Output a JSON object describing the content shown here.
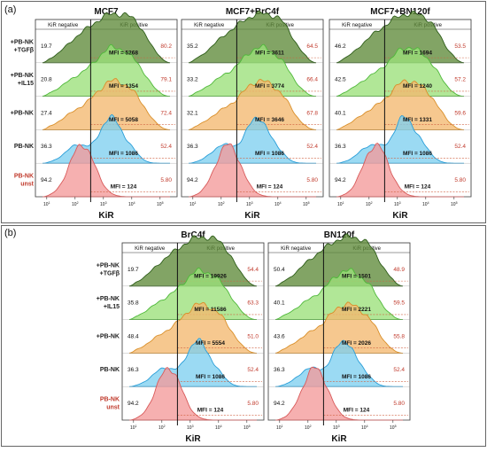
{
  "panel_labels": [
    "(a)",
    "(b)"
  ],
  "row_labels": [
    [
      "+PB-NK",
      "+TGFβ"
    ],
    [
      "+PB-NK",
      "+IL15"
    ],
    [
      "+PB-NK"
    ],
    [
      "PB-NK"
    ],
    [
      "PB-NK",
      "unst"
    ]
  ],
  "header": {
    "negative": "KiR negative",
    "positive": "KiR positive"
  },
  "axis": {
    "xlabel": "KiR",
    "tick_labels": [
      "10",
      "10",
      "10",
      "10",
      "10"
    ],
    "tick_exponents": [
      "1",
      "2",
      "3",
      "4",
      "5"
    ]
  },
  "colors": {
    "tgfb": "#5f8a3a",
    "tgfb_line": "#2e5d1a",
    "il15": "#9be07a",
    "il15_line": "#4fb83a",
    "pbnk_plus": "#f3b870",
    "pbnk_plus_line": "#d98f2a",
    "pbnk": "#7fd0f0",
    "pbnk_line": "#2a9ed8",
    "unst": "#f39a9a",
    "unst_line": "#d85a5a",
    "percent_text": "#c0392b",
    "unst_label": "#c0392b",
    "dash_line": "#d06040",
    "frame": "#666666"
  },
  "chart_data": [
    {
      "type": "histogram",
      "panel": "(a)",
      "title": "MCF7",
      "xlabel": "KiR",
      "rows": [
        {
          "condition": "+PB-NK +TGFβ",
          "negative_pct": "19.7",
          "positive_pct": "80.2",
          "mfi": "MFI = 5268"
        },
        {
          "condition": "+PB-NK +IL15",
          "negative_pct": "20.8",
          "positive_pct": "79.1",
          "mfi": "MFI = 1354"
        },
        {
          "condition": "+PB-NK",
          "negative_pct": "27.4",
          "positive_pct": "72.4",
          "mfi": "MFI = 5058"
        },
        {
          "condition": "PB-NK",
          "negative_pct": "36.3",
          "positive_pct": "52.4",
          "mfi": "MFI = 1086"
        },
        {
          "condition": "PB-NK unst",
          "negative_pct": "94.2",
          "positive_pct": "5.80",
          "mfi": "MFI = 124"
        }
      ]
    },
    {
      "type": "histogram",
      "panel": "(a)",
      "title": "MCF7+BrC4f",
      "xlabel": "KiR",
      "rows": [
        {
          "condition": "+PB-NK +TGFβ",
          "negative_pct": "35.2",
          "positive_pct": "64.5",
          "mfi": "MFI = 3611"
        },
        {
          "condition": "+PB-NK +IL15",
          "negative_pct": "33.2",
          "positive_pct": "66.4",
          "mfi": "MFI = 3774"
        },
        {
          "condition": "+PB-NK",
          "negative_pct": "32.1",
          "positive_pct": "67.8",
          "mfi": "MFI = 3646"
        },
        {
          "condition": "PB-NK",
          "negative_pct": "36.3",
          "positive_pct": "52.4",
          "mfi": "MFI = 1086"
        },
        {
          "condition": "PB-NK unst",
          "negative_pct": "94.2",
          "positive_pct": "5.80",
          "mfi": "MFI = 124"
        }
      ]
    },
    {
      "type": "histogram",
      "panel": "(a)",
      "title": "MCF7+BN120f",
      "xlabel": "KiR",
      "rows": [
        {
          "condition": "+PB-NK +TGFβ",
          "negative_pct": "46.2",
          "positive_pct": "53.5",
          "mfi": "MFI = 1694"
        },
        {
          "condition": "+PB-NK +IL15",
          "negative_pct": "42.5",
          "positive_pct": "57.2",
          "mfi": "MFI = 1240"
        },
        {
          "condition": "+PB-NK",
          "negative_pct": "40.1",
          "positive_pct": "59.6",
          "mfi": "MFI = 1331"
        },
        {
          "condition": "PB-NK",
          "negative_pct": "36.3",
          "positive_pct": "52.4",
          "mfi": "MFI = 1086"
        },
        {
          "condition": "PB-NK unst",
          "negative_pct": "94.2",
          "positive_pct": "5.80",
          "mfi": "MFI = 124"
        }
      ]
    },
    {
      "type": "histogram",
      "panel": "(b)",
      "title": "BrC4f",
      "xlabel": "KiR",
      "rows": [
        {
          "condition": "+PB-NK +TGFβ",
          "negative_pct": "19.7",
          "positive_pct": "54.4",
          "mfi": "MFI = 19926"
        },
        {
          "condition": "+PB-NK +IL15",
          "negative_pct": "35.8",
          "positive_pct": "63.3",
          "mfi": "MFI = 11586"
        },
        {
          "condition": "+PB-NK",
          "negative_pct": "48.4",
          "positive_pct": "51.0",
          "mfi": "MFI = 5554"
        },
        {
          "condition": "PB-NK",
          "negative_pct": "36.3",
          "positive_pct": "52.4",
          "mfi": "MFI = 1086"
        },
        {
          "condition": "PB-NK unst",
          "negative_pct": "94.2",
          "positive_pct": "5.80",
          "mfi": "MFI = 124"
        }
      ]
    },
    {
      "type": "histogram",
      "panel": "(b)",
      "title": "BN120f",
      "xlabel": "KiR",
      "rows": [
        {
          "condition": "+PB-NK +TGFβ",
          "negative_pct": "50.4",
          "positive_pct": "48.9",
          "mfi": "MFI = 1501"
        },
        {
          "condition": "+PB-NK +IL15",
          "negative_pct": "40.1",
          "positive_pct": "59.5",
          "mfi": "MFI = 2221"
        },
        {
          "condition": "+PB-NK",
          "negative_pct": "43.6",
          "positive_pct": "55.8",
          "mfi": "MFI = 2026"
        },
        {
          "condition": "PB-NK",
          "negative_pct": "36.3",
          "positive_pct": "52.4",
          "mfi": "MFI = 1086"
        },
        {
          "condition": "PB-NK unst",
          "negative_pct": "94.2",
          "positive_pct": "5.80",
          "mfi": "MFI = 124"
        }
      ]
    }
  ]
}
